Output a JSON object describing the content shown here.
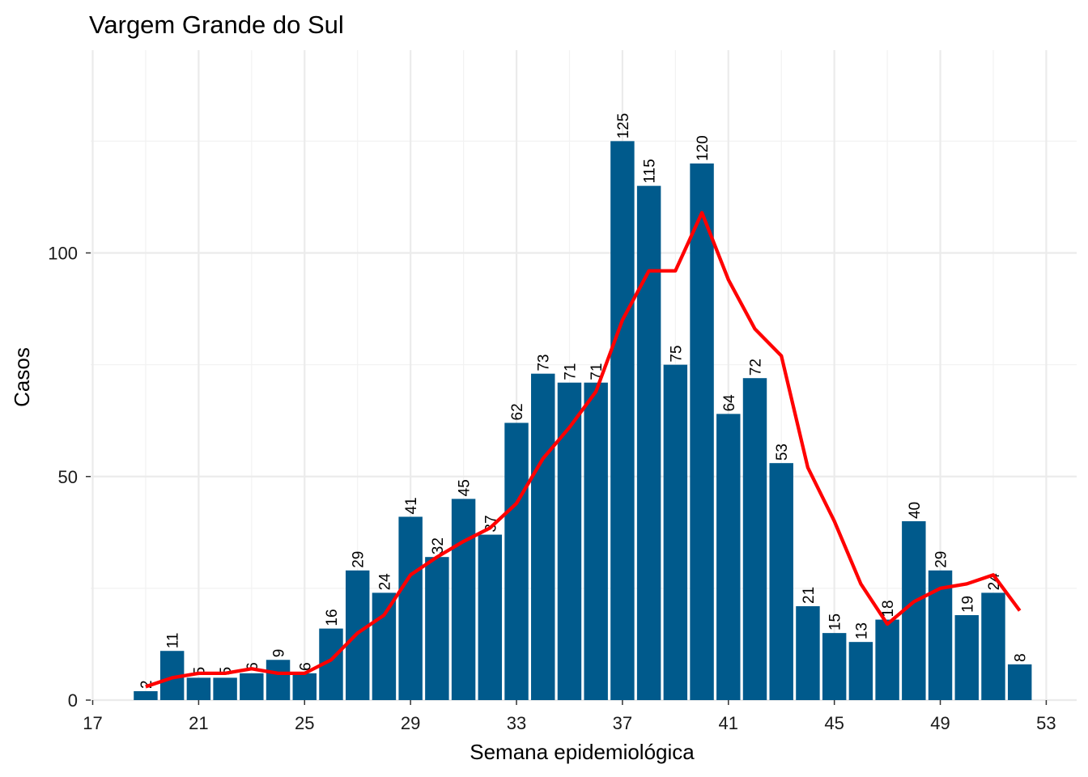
{
  "chart_data": {
    "type": "bar",
    "title": "Vargem Grande do Sul",
    "xlabel": "Semana epidemiológica",
    "ylabel": "Casos",
    "x": [
      19,
      20,
      21,
      22,
      23,
      24,
      25,
      26,
      27,
      28,
      29,
      30,
      31,
      32,
      33,
      34,
      35,
      36,
      37,
      38,
      39,
      40,
      41,
      42,
      43,
      44,
      45,
      46,
      47,
      48,
      49,
      50,
      51,
      52
    ],
    "series": [
      {
        "type": "bar",
        "color": "#005a8c",
        "values": [
          2,
          11,
          5,
          5,
          6,
          9,
          6,
          16,
          29,
          24,
          41,
          32,
          45,
          37,
          62,
          73,
          71,
          71,
          125,
          115,
          75,
          120,
          64,
          72,
          53,
          21,
          15,
          13,
          18,
          40,
          29,
          19,
          24,
          8
        ]
      },
      {
        "type": "line",
        "color": "#ff0000",
        "values": [
          3,
          5,
          6,
          6,
          7,
          6,
          6,
          9,
          15,
          19,
          28,
          32,
          35.5,
          38.5,
          44,
          54,
          61,
          69,
          85,
          96,
          96,
          109,
          94,
          83,
          77,
          52,
          40,
          26,
          17,
          22,
          25,
          26,
          28,
          20
        ]
      }
    ],
    "xlim": [
      17,
      53
    ],
    "ylim": [
      0,
      140
    ],
    "xticks": [
      17,
      21,
      25,
      29,
      33,
      37,
      41,
      45,
      49,
      53
    ],
    "yticks": [
      0,
      50,
      100
    ],
    "grid": true
  }
}
